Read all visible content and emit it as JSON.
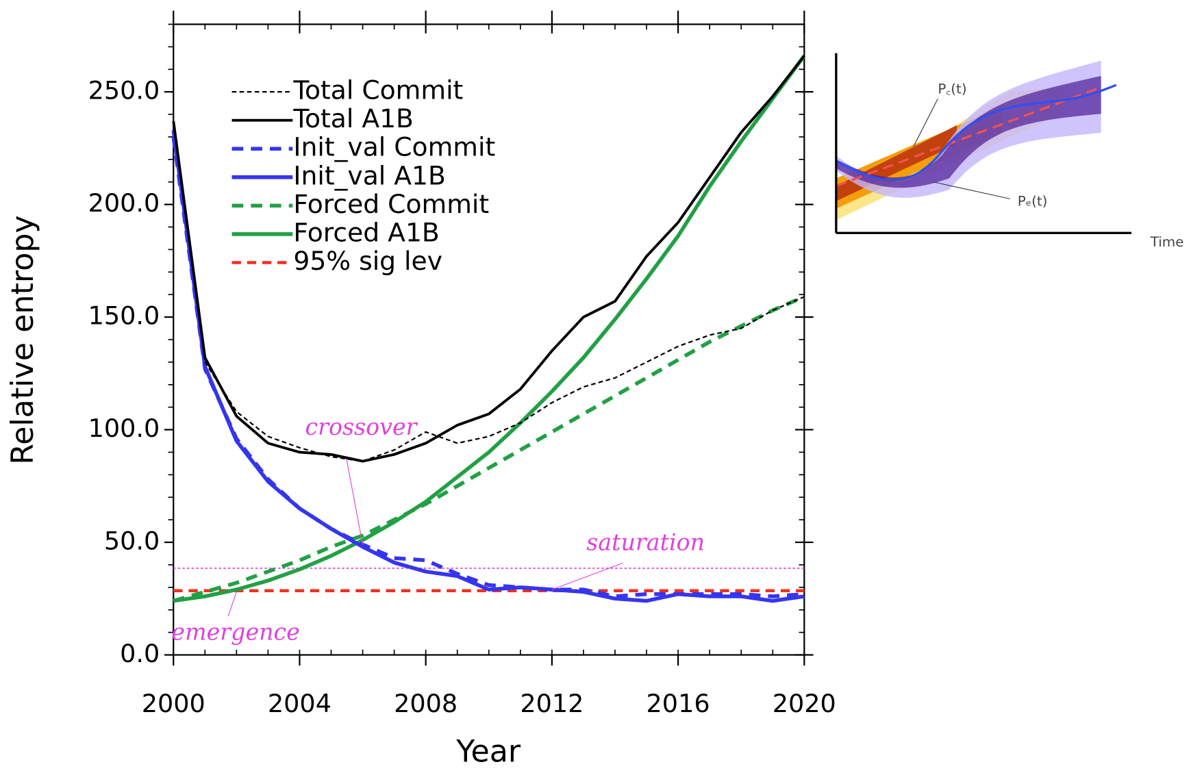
{
  "chart_data": {
    "type": "line",
    "xlabel": "Year",
    "ylabel": "Relative entropy",
    "x": [
      2000,
      2001,
      2002,
      2003,
      2004,
      2005,
      2006,
      2007,
      2008,
      2009,
      2010,
      2011,
      2012,
      2013,
      2014,
      2015,
      2016,
      2017,
      2018,
      2019,
      2020
    ],
    "xlim": [
      2000,
      2020
    ],
    "xticks": [
      2000,
      2004,
      2008,
      2012,
      2016,
      2020
    ],
    "ylim": [
      0,
      280
    ],
    "yticks": [
      {
        "value": 0,
        "label": "0.0"
      },
      {
        "value": 50,
        "label": "50.0"
      },
      {
        "value": 100,
        "label": "100.0"
      },
      {
        "value": 150,
        "label": "150.0"
      },
      {
        "value": 200,
        "label": "200.0"
      },
      {
        "value": 250,
        "label": "250.0"
      }
    ],
    "series": [
      {
        "name": "Total Commit",
        "color": "#000000",
        "dashed": true,
        "linewidth": 2,
        "values": [
          237,
          130,
          108,
          97,
          92,
          88,
          86,
          91,
          99,
          94,
          97,
          103,
          112,
          119,
          123,
          130,
          137,
          142,
          145,
          153,
          159
        ]
      },
      {
        "name": "Total A1B",
        "color": "#000000",
        "dashed": false,
        "linewidth": 3.5,
        "values": [
          237,
          132,
          106,
          94,
          90,
          89,
          86,
          89,
          94,
          102,
          107,
          118,
          135,
          150,
          157,
          177,
          192,
          212,
          232,
          248,
          266
        ]
      },
      {
        "name": "Init_val Commit",
        "color": "#3535f0",
        "dashed": true,
        "linewidth": 5,
        "values": [
          230,
          127,
          96,
          78,
          65,
          56,
          49,
          43,
          42,
          36,
          31,
          30,
          29,
          29,
          26,
          27,
          27,
          27,
          27,
          26,
          27
        ]
      },
      {
        "name": "Init_val A1B",
        "color": "#3535f0",
        "dashed": false,
        "linewidth": 5,
        "values": [
          233,
          128,
          95,
          77,
          65,
          56,
          48,
          41,
          37,
          35,
          29,
          30,
          29,
          28,
          25,
          24,
          27,
          26,
          26,
          24,
          26
        ]
      },
      {
        "name": "Forced Commit",
        "color": "#22a045",
        "dashed": true,
        "linewidth": 5,
        "values": [
          24,
          28,
          32,
          37,
          42,
          48,
          53,
          60,
          67,
          75,
          83,
          91,
          99,
          107,
          115,
          123,
          131,
          139,
          146,
          153,
          159
        ]
      },
      {
        "name": "Forced A1B",
        "color": "#22a045",
        "dashed": false,
        "linewidth": 5,
        "values": [
          24,
          26,
          29,
          33,
          38,
          44,
          51,
          59,
          68,
          79,
          90,
          103,
          117,
          132,
          149,
          167,
          186,
          208,
          228,
          247,
          266
        ]
      },
      {
        "name": "95% sig lev",
        "color": "#f03020",
        "dashed": true,
        "linewidth": 4,
        "values": [
          28.5,
          28.5,
          28.5,
          28.5,
          28.5,
          28.5,
          28.5,
          28.5,
          28.5,
          28.5,
          28.5,
          28.5,
          28.5,
          28.5,
          28.5,
          28.5,
          28.5,
          28.5,
          28.5,
          28.5,
          28.5
        ]
      }
    ],
    "hlines": [
      {
        "value": 38.5,
        "color": "#e040e0"
      }
    ],
    "annotations": [
      {
        "text": "crossover",
        "x": 2006,
        "y": 49
      },
      {
        "text": "saturation",
        "x": 2012,
        "y": 29
      },
      {
        "text": "emergence",
        "x": 2002,
        "y": 28
      }
    ]
  },
  "inset": {
    "pc_label": "P꜀(t)",
    "pe_label": "Pₑ(t)",
    "xlabel": "Time"
  }
}
